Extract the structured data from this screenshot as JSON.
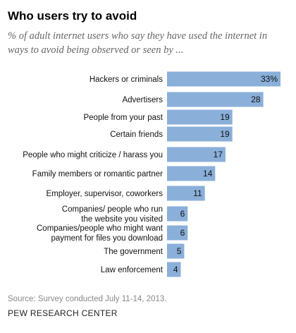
{
  "chart_data": {
    "type": "bar",
    "orientation": "horizontal",
    "title": "Who users try to avoid",
    "subtitle": "% of adult internet users who say they have used the internet in ways to avoid being observed or seen by ...",
    "categories": [
      [
        "Hackers or criminals"
      ],
      [
        "Advertisers"
      ],
      [
        "People from your past"
      ],
      [
        "Certain friends"
      ],
      [
        "People who might criticize / harass you"
      ],
      [
        "Family members or romantic partner"
      ],
      [
        "Employer, supervisor, coworkers"
      ],
      [
        "Companies/ people who run",
        "the website you visited"
      ],
      [
        "Companies/people who might want",
        "payment for files you download"
      ],
      [
        "The government"
      ],
      [
        "Law enforcement"
      ]
    ],
    "values": [
      33,
      28,
      19,
      19,
      17,
      14,
      11,
      6,
      6,
      5,
      4
    ],
    "value_labels": [
      "33%",
      "28",
      "19",
      "19",
      "17",
      "14",
      "11",
      "6",
      "6",
      "5",
      "4"
    ],
    "bar_color": "#8aafd9",
    "xlim": [
      0,
      33
    ]
  },
  "footer": {
    "source": "Source: Survey conducted July 11-14, 2013.",
    "organization": "PEW RESEARCH CENTER"
  }
}
